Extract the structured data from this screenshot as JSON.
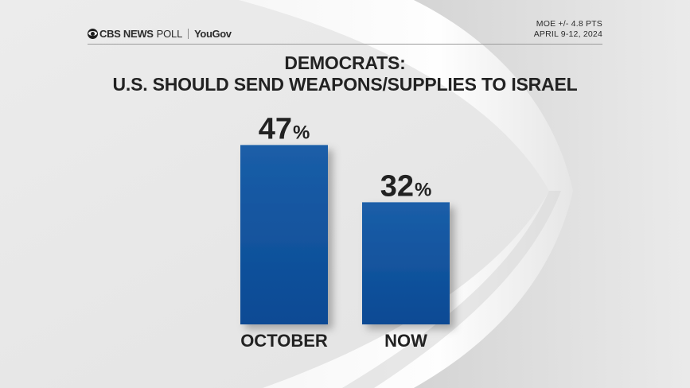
{
  "header": {
    "brand": "CBS NEWS",
    "poll": "POLL",
    "partner": "YouGov",
    "moe": "MOE +/- 4.8 PTS",
    "dates": "APRIL 9-12, 2024"
  },
  "colors": {
    "bar_top": "#1b5ea8",
    "bar_bottom": "#0a4a94",
    "text": "#222222"
  },
  "chart_data": {
    "type": "bar",
    "title": "DEMOCRATS:",
    "subtitle": "U.S. SHOULD SEND WEAPONS/SUPPLIES TO ISRAEL",
    "categories": [
      "OCTOBER",
      "NOW"
    ],
    "values": [
      47,
      32
    ],
    "value_labels": [
      "47",
      "32"
    ],
    "unit": "%",
    "ylim": [
      0,
      60
    ],
    "grid": false,
    "legend": "none"
  }
}
